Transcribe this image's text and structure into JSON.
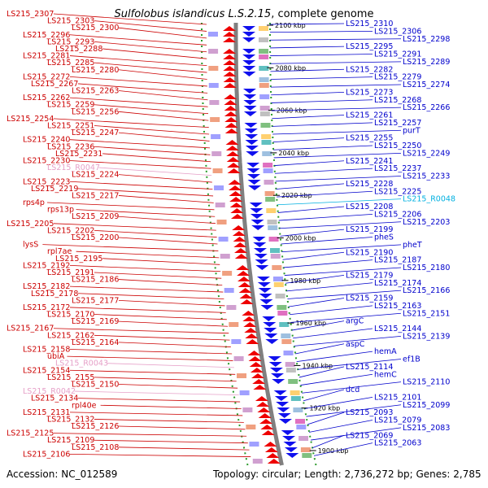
{
  "header": {
    "organism": "Sulfolobus islandicus L.S.2.15",
    "suffix": ", complete genome"
  },
  "footer": {
    "accession": "Accession: NC_012589",
    "summary": "Topology: circular; Length: 2,736,272 bp; Genes: 2,785"
  },
  "colors": {
    "left_labels": "#cc0000",
    "right_labels": "#0000cc",
    "pseudo_left": "#e6a0c8",
    "rna_right": "#00b0e0",
    "forward_arrows": "#ee0000",
    "reverse_arrows": "#1010ee"
  },
  "ruler_ticks": [
    "2100 kbp",
    "2080 kbp",
    "2060 kbp",
    "2040 kbp",
    "2020 kbp",
    "2000 kbp",
    "1980 kbp",
    "1960 kbp",
    "1940 kbp",
    "1920 kbp",
    "1900 kbp"
  ],
  "left_labels": [
    "LS215_2307",
    "LS215_2303",
    "LS215_2300",
    "LS215_2296",
    "LS215_2293",
    "LS215_2288",
    "LS215_2281",
    "LS215_2285",
    "LS215_2280",
    "LS215_2272",
    "LS215_2267",
    "LS215_2263",
    "LS215_2262",
    "LS215_2259",
    "LS215_2256",
    "LS215_2254",
    "LS215_2251",
    "LS215_2247",
    "LS215_2240",
    "LS215_2236",
    "LS215_2231",
    "LS215_2230",
    "LS215_R0047",
    "LS215_2224",
    "LS215_2223",
    "LS215_2219",
    "LS215_2217",
    "rps4p",
    "rps13p",
    "LS215_2209",
    "LS215_2205",
    "LS215_2202",
    "LS215_2200",
    "lysS",
    "rpl7ae",
    "LS215_2195",
    "LS215_2192",
    "LS215_2191",
    "LS215_2186",
    "LS215_2182",
    "LS215_2178",
    "LS215_2177",
    "LS215_2172",
    "LS215_2170",
    "LS215_2169",
    "LS215_2167",
    "LS215_2162",
    "LS215_2164",
    "LS215_2158",
    "ubiA",
    "LS215_R0043",
    "LS215_2154",
    "LS215_2155",
    "LS215_2150",
    "LS215_R0042",
    "LS215_2134",
    "rpl40e",
    "LS215_2131",
    "LS215_2132",
    "LS215_2126",
    "LS215_2125",
    "LS215_2109",
    "LS215_2108",
    "LS215_2106"
  ],
  "right_labels": [
    "LS215_2310",
    "LS215_2306",
    "LS215_2298",
    "LS215_2295",
    "LS215_2291",
    "LS215_2289",
    "LS215_2282",
    "LS215_2279",
    "LS215_2274",
    "LS215_2273",
    "LS215_2268",
    "LS215_2266",
    "LS215_2261",
    "LS215_2257",
    "purT",
    "LS215_2255",
    "LS215_2250",
    "LS215_2249",
    "LS215_2241",
    "LS215_2237",
    "LS215_2233",
    "LS215_2228",
    "LS215_2225",
    "LS215_R0048",
    "LS215_2208",
    "LS215_2206",
    "LS215_2203",
    "LS215_2199",
    "pheS",
    "pheT",
    "LS215_2190",
    "LS215_2187",
    "LS215_2180",
    "LS215_2179",
    "LS215_2174",
    "LS215_2166",
    "LS215_2159",
    "LS215_2163",
    "LS215_2151",
    "argC",
    "LS215_2144",
    "LS215_2139",
    "aspC",
    "hemA",
    "ef1B",
    "LS215_2114",
    "hemC",
    "LS215_2110",
    "dcd",
    "LS215_2101",
    "LS215_2099",
    "LS215_2093",
    "LS215_2079",
    "LS215_2083",
    "LS215_2069",
    "LS215_2063"
  ]
}
